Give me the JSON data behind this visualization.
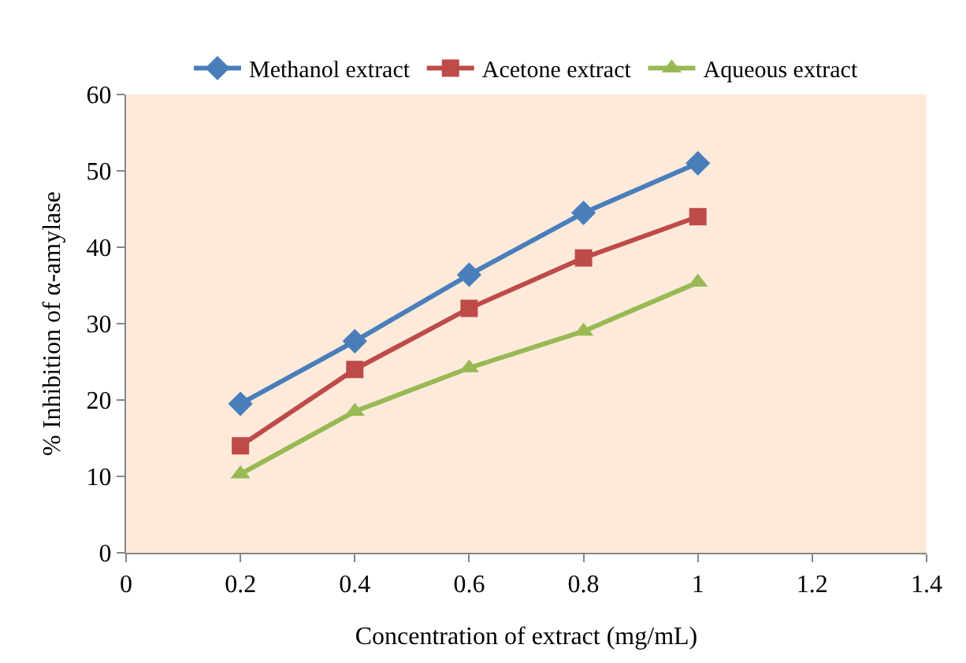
{
  "chart_data": {
    "type": "line",
    "xlabel": "Concentration of extract (mg/mL)",
    "ylabel": "% Inhibition of α-amylase",
    "x": [
      0.2,
      0.4,
      0.6,
      0.8,
      1
    ],
    "xlim": [
      0,
      1.4
    ],
    "xticks": [
      0,
      0.2,
      0.4,
      0.6,
      0.8,
      1,
      1.2,
      1.4
    ],
    "ylim": [
      0,
      60
    ],
    "yticks": [
      0,
      10,
      20,
      30,
      40,
      50,
      60
    ],
    "grid": false,
    "legend": "top",
    "line_style": "solid",
    "series": [
      {
        "name": "Methanol extract",
        "color": "#4a7ebb",
        "marker": "diamond",
        "values": [
          19.5,
          27.7,
          36.4,
          44.5,
          51
        ]
      },
      {
        "name": "Acetone extract",
        "color": "#be4b48",
        "marker": "square",
        "values": [
          14,
          24,
          32,
          38.6,
          44
        ]
      },
      {
        "name": "Aqueous extract",
        "color": "#98b954",
        "marker": "triangle",
        "values": [
          10.3,
          18.5,
          24.2,
          29,
          35.4
        ]
      }
    ]
  }
}
